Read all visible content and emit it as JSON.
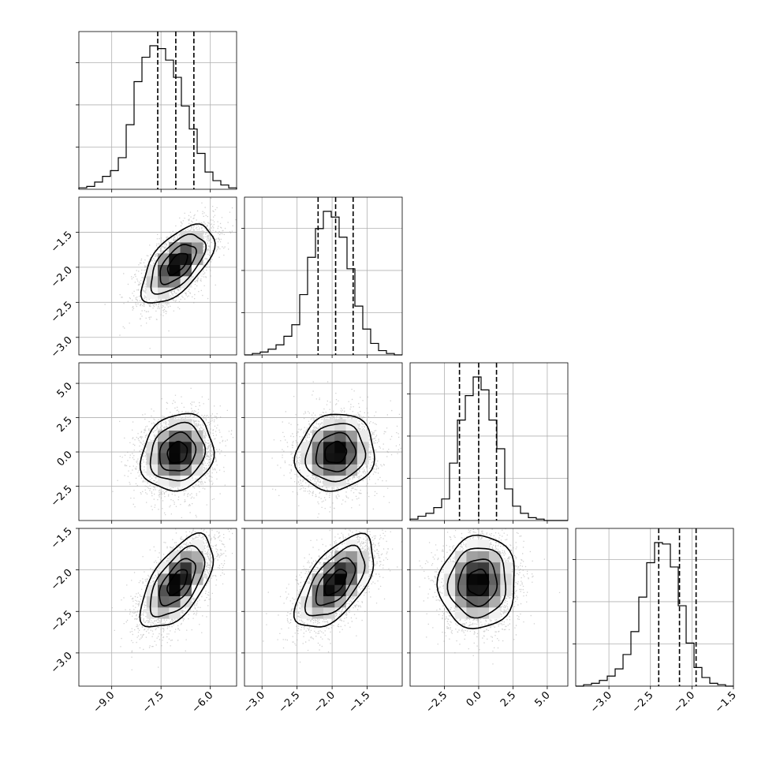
{
  "chart_data": {
    "type": "corner",
    "grid": true,
    "parameters": [
      {
        "mean": -7.0,
        "std": 0.55,
        "range": [
          -10.0,
          -5.2
        ],
        "ticks": [
          -9.0,
          -7.5,
          -6.0
        ],
        "tick_labels": [
          "−9.0",
          "−7.5",
          "−6.0"
        ],
        "quantiles": [
          -7.6,
          -7.05,
          -6.5
        ]
      },
      {
        "mean": -1.95,
        "std": 0.28,
        "range": [
          -3.25,
          -1.0
        ],
        "ticks": [
          -3.0,
          -2.5,
          -2.0,
          -1.5
        ],
        "tick_labels": [
          "−3.0",
          "−2.5",
          "−2.0",
          "−1.5"
        ],
        "quantiles": [
          -2.2,
          -1.95,
          -1.7
        ]
      },
      {
        "mean": -0.05,
        "std": 1.4,
        "range": [
          -5.0,
          6.5
        ],
        "ticks": [
          -2.5,
          0.0,
          2.5,
          5.0
        ],
        "tick_labels": [
          "−2.5",
          "0.0",
          "2.5",
          "5.0"
        ],
        "quantiles": [
          -1.4,
          0.0,
          1.3
        ]
      },
      {
        "mean": -2.15,
        "std": 0.28,
        "range": [
          -3.4,
          -1.5
        ],
        "ticks": [
          -3.0,
          -2.5,
          -2.0,
          -1.5
        ],
        "tick_labels": [
          "−3.0",
          "−2.5",
          "−2.0",
          "−1.5"
        ],
        "quantiles": [
          -2.4,
          -2.15,
          -1.95
        ]
      }
    ],
    "correlations": [
      [
        1.0,
        0.6,
        0.15,
        0.6
      ],
      [
        0.6,
        1.0,
        0.1,
        0.6
      ],
      [
        0.15,
        0.1,
        1.0,
        0.05
      ],
      [
        0.6,
        0.6,
        0.05,
        1.0
      ]
    ],
    "histograms": [
      {
        "counts": [
          0.01,
          0.02,
          0.05,
          0.09,
          0.13,
          0.22,
          0.45,
          0.75,
          0.92,
          1.0,
          0.98,
          0.9,
          0.78,
          0.58,
          0.42,
          0.25,
          0.12,
          0.06,
          0.03,
          0.01
        ]
      },
      {
        "counts": [
          0.0,
          0.01,
          0.02,
          0.04,
          0.07,
          0.13,
          0.21,
          0.42,
          0.68,
          0.88,
          1.0,
          0.96,
          0.82,
          0.6,
          0.34,
          0.18,
          0.08,
          0.03,
          0.01,
          0.0
        ]
      },
      {
        "counts": [
          0.01,
          0.03,
          0.05,
          0.09,
          0.15,
          0.4,
          0.7,
          0.87,
          1.0,
          0.91,
          0.7,
          0.5,
          0.22,
          0.1,
          0.05,
          0.02,
          0.01,
          0.0,
          0.0,
          0.0
        ]
      },
      {
        "counts": [
          0.0,
          0.01,
          0.02,
          0.04,
          0.07,
          0.12,
          0.22,
          0.38,
          0.62,
          0.86,
          1.0,
          0.99,
          0.83,
          0.56,
          0.3,
          0.13,
          0.06,
          0.02,
          0.01,
          0.0
        ]
      }
    ]
  }
}
